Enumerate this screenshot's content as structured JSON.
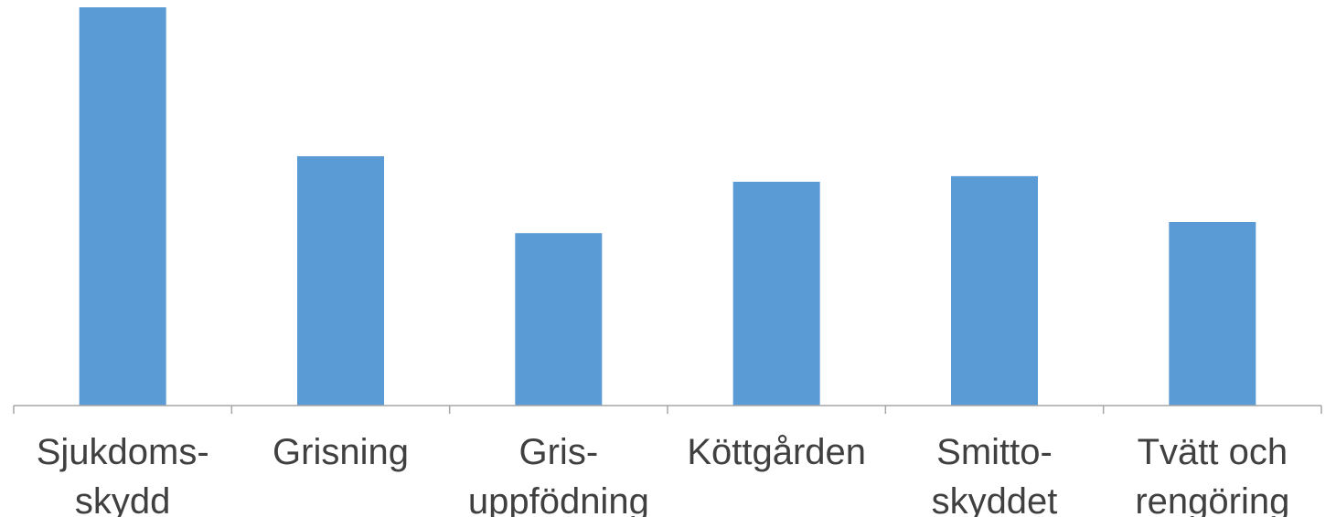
{
  "chart_data": {
    "type": "bar",
    "categories": [
      "Sjukdoms-\nskydd",
      "Grisning",
      "Gris-\nuppfödning",
      "Köttgården",
      "Smitto-\nskyddet",
      "Tvätt och\nrengöring"
    ],
    "values": [
      100,
      62.6,
      43.3,
      56.2,
      57.6,
      46.1
    ],
    "color": "#5b9bd5",
    "ylim": [
      0,
      100
    ]
  }
}
